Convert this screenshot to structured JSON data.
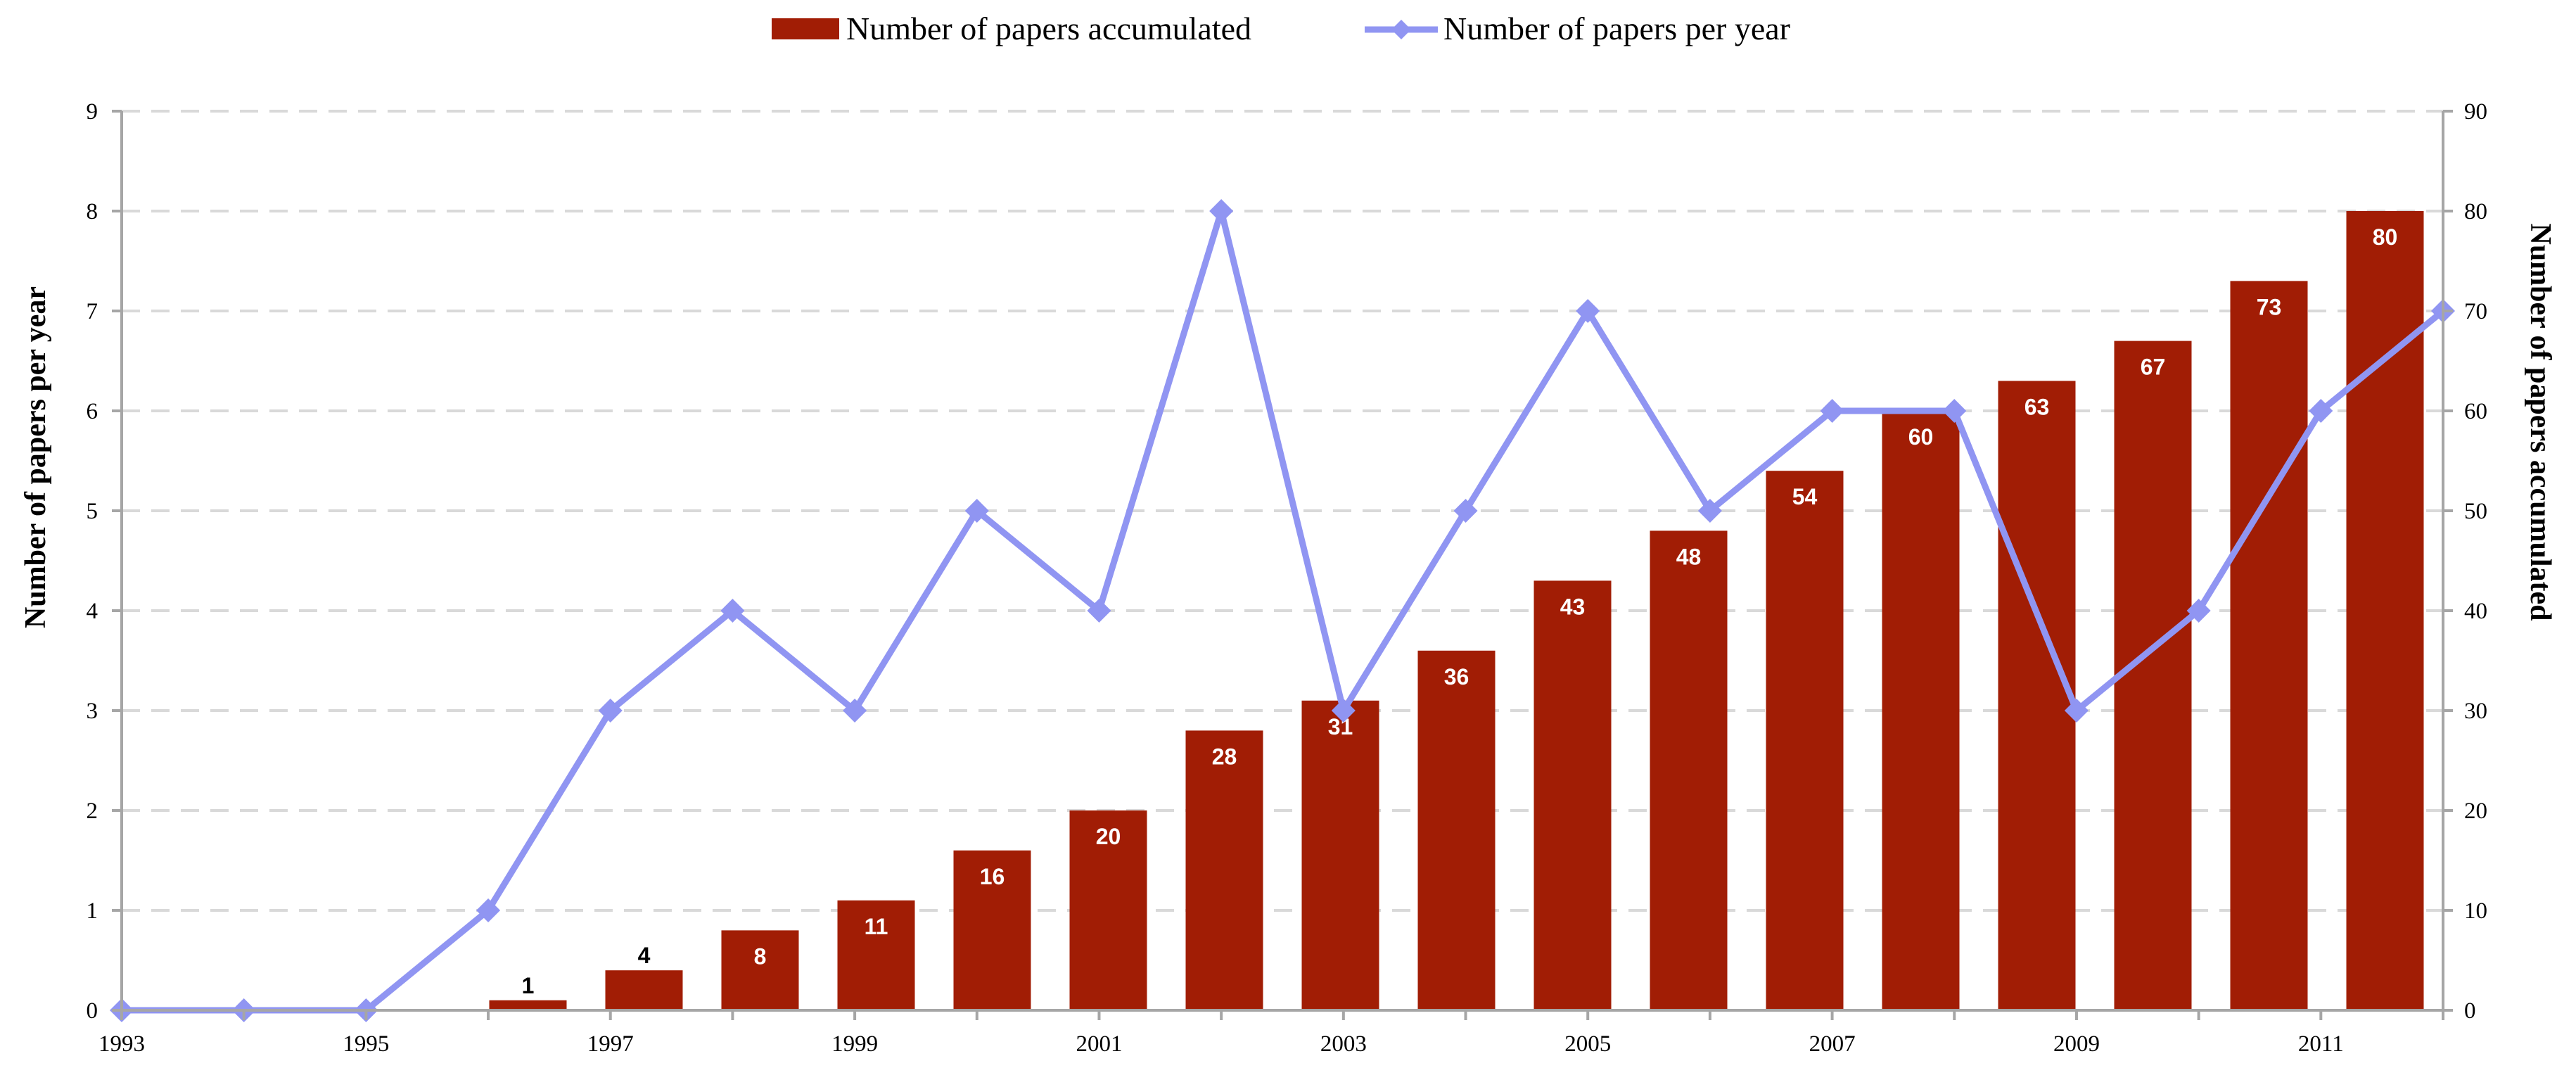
{
  "chart_data": {
    "type": "bar+line",
    "categories": [
      "1993",
      "1994",
      "1995",
      "1996",
      "1997",
      "1998",
      "1999",
      "2000",
      "2001",
      "2002",
      "2003",
      "2004",
      "2005",
      "2006",
      "2007",
      "2008",
      "2009",
      "2010",
      "2011",
      "2012"
    ],
    "x_tick_labels": [
      "1993",
      "1995",
      "1997",
      "1999",
      "2001",
      "2003",
      "2005",
      "2007",
      "2009",
      "2011"
    ],
    "series": [
      {
        "name": "Number of papers accumulated",
        "type": "bar",
        "axis": "right",
        "color": "#a11d05",
        "values": [
          0,
          0,
          0,
          1,
          4,
          8,
          11,
          16,
          20,
          28,
          31,
          36,
          43,
          48,
          54,
          60,
          63,
          67,
          73,
          80
        ],
        "labels": [
          "",
          "",
          "",
          "1",
          "4",
          "8",
          "11",
          "16",
          "20",
          "28",
          "31",
          "36",
          "43",
          "48",
          "54",
          "60",
          "63",
          "67",
          "73",
          "80"
        ]
      },
      {
        "name": "Number of papers per year",
        "type": "line",
        "axis": "left",
        "color": "#9095f2",
        "marker": "diamond",
        "values": [
          0,
          0,
          0,
          1,
          3,
          4,
          3,
          5,
          4,
          8,
          3,
          5,
          7,
          5,
          6,
          6,
          3,
          4,
          6,
          7
        ]
      }
    ],
    "y_left": {
      "label": "Number of papers per year",
      "range": [
        0,
        9
      ],
      "ticks": [
        "0",
        "1",
        "2",
        "3",
        "4",
        "5",
        "6",
        "7",
        "8",
        "9"
      ]
    },
    "y_right": {
      "label": "Number of papers accumulated",
      "range": [
        0,
        90
      ],
      "ticks": [
        "0",
        "10",
        "20",
        "30",
        "40",
        "50",
        "60",
        "70",
        "80",
        "90"
      ]
    },
    "grid": "horizontal-dashed",
    "legend_position": "top-center"
  }
}
